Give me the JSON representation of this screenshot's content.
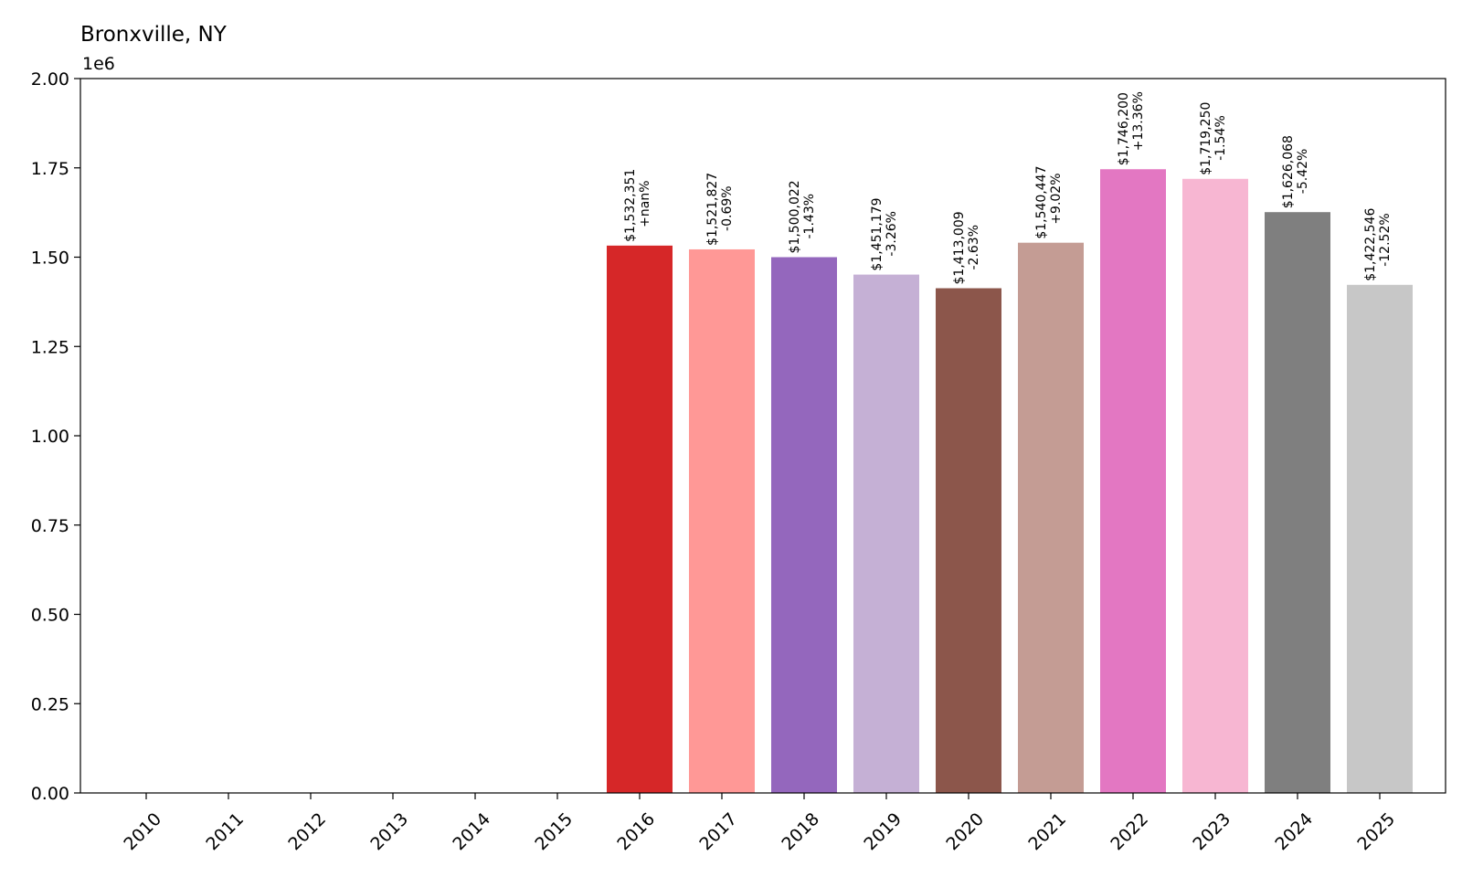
{
  "chart_data": {
    "type": "bar",
    "title": "Bronxville, NY",
    "xlabel": "",
    "ylabel": "",
    "y_offset_label": "1e6",
    "ylim": [
      0,
      2000000
    ],
    "ytick_labels": [
      "0.00",
      "0.25",
      "0.50",
      "0.75",
      "1.00",
      "1.25",
      "1.50",
      "1.75",
      "2.00"
    ],
    "grid": false,
    "categories": [
      "2010",
      "2011",
      "2012",
      "2013",
      "2014",
      "2015",
      "2016",
      "2017",
      "2018",
      "2019",
      "2020",
      "2021",
      "2022",
      "2023",
      "2024",
      "2025"
    ],
    "values": [
      0,
      0,
      0,
      0,
      0,
      0,
      1532351,
      1521827,
      1500022,
      1451179,
      1413009,
      1540447,
      1746200,
      1719250,
      1626068,
      1422546
    ],
    "value_labels": [
      "",
      "",
      "",
      "",
      "",
      "",
      "$1,532,351",
      "$1,521,827",
      "$1,500,022",
      "$1,451,179",
      "$1,413,009",
      "$1,540,447",
      "$1,746,200",
      "$1,719,250",
      "$1,626,068",
      "$1,422,546"
    ],
    "change_labels": [
      "",
      "",
      "",
      "",
      "",
      "",
      "+nan%",
      "-0.69%",
      "-1.43%",
      "-3.26%",
      "-2.63%",
      "+9.02%",
      "+13.36%",
      "-1.54%",
      "-5.42%",
      "-12.52%"
    ],
    "colors": [
      "#1f77b4",
      "#aec7e8",
      "#ff7f0e",
      "#ffbb78",
      "#2ca02c",
      "#98df8a",
      "#d62728",
      "#ff9896",
      "#9467bd",
      "#c5b0d5",
      "#8c564b",
      "#c49c94",
      "#e377c2",
      "#f7b6d2",
      "#7f7f7f",
      "#c7c7c7"
    ]
  }
}
